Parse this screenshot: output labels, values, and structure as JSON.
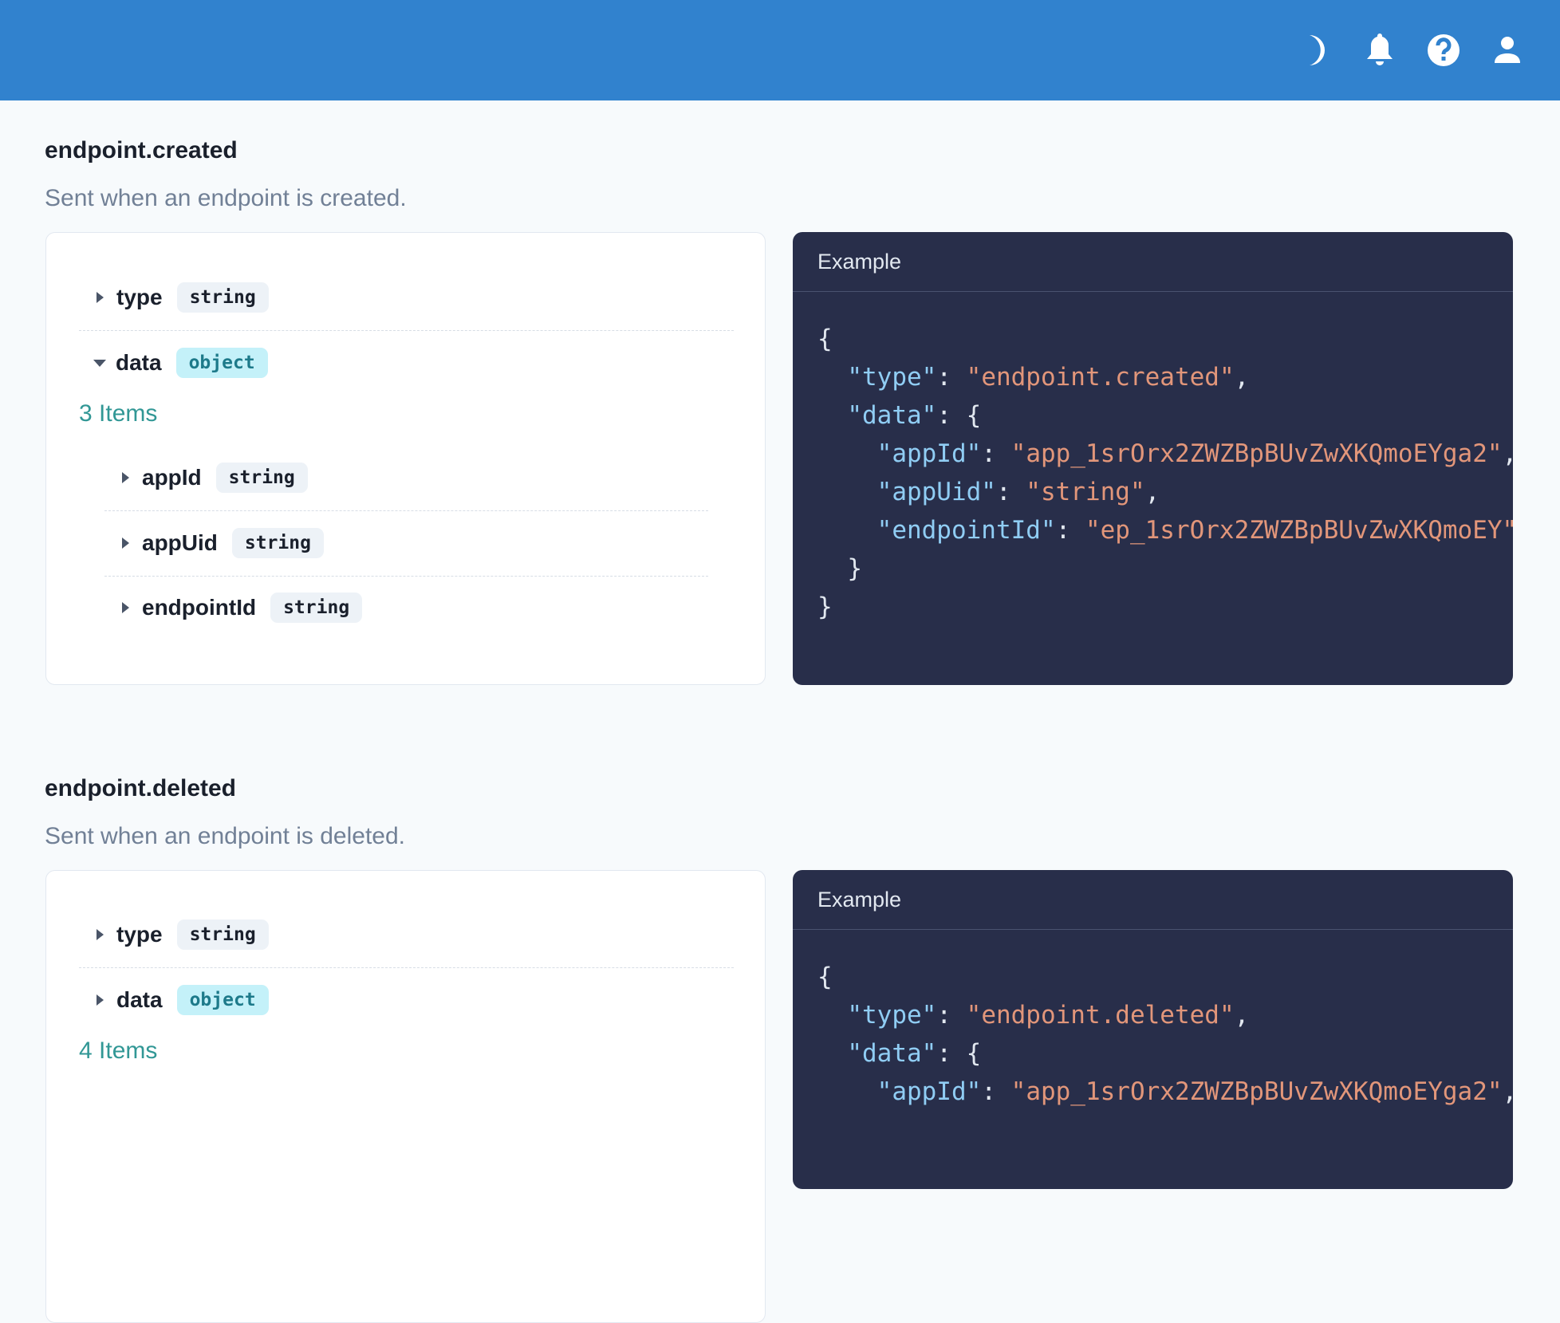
{
  "topbar": {
    "icons": [
      "moon-icon",
      "bell-icon",
      "help-icon",
      "user-icon"
    ]
  },
  "events": [
    {
      "name": "endpoint.created",
      "description": "Sent when an endpoint is created.",
      "fields": [
        {
          "name": "type",
          "type": "string"
        },
        {
          "name": "data",
          "type": "object",
          "expanded": true
        }
      ],
      "items_label": "3 Items",
      "subfields": [
        {
          "name": "appId",
          "type": "string"
        },
        {
          "name": "appUid",
          "type": "string"
        },
        {
          "name": "endpointId",
          "type": "string"
        }
      ],
      "example_label": "Example",
      "example": {
        "type": "endpoint.created",
        "appId": "app_1srOrx2ZWZBpBUvZwXKQmoEYga2",
        "appUid": "string",
        "endpointId": "ep_1srOrx2ZWZBpBUvZwXKQmoEY"
      }
    },
    {
      "name": "endpoint.deleted",
      "description": "Sent when an endpoint is deleted.",
      "fields": [
        {
          "name": "type",
          "type": "string"
        },
        {
          "name": "data",
          "type": "object",
          "expanded": false
        }
      ],
      "items_label": "4 Items",
      "example_label": "Example",
      "example": {
        "type": "endpoint.deleted",
        "appId": "app_1srOrx2ZWZBpBUvZwXKQmoEYga2"
      }
    }
  ],
  "colors": {
    "header": "#3182ce",
    "code_bg": "#282e4a",
    "key": "#90cdf4",
    "string": "#e2967a",
    "accent": "#319795"
  }
}
